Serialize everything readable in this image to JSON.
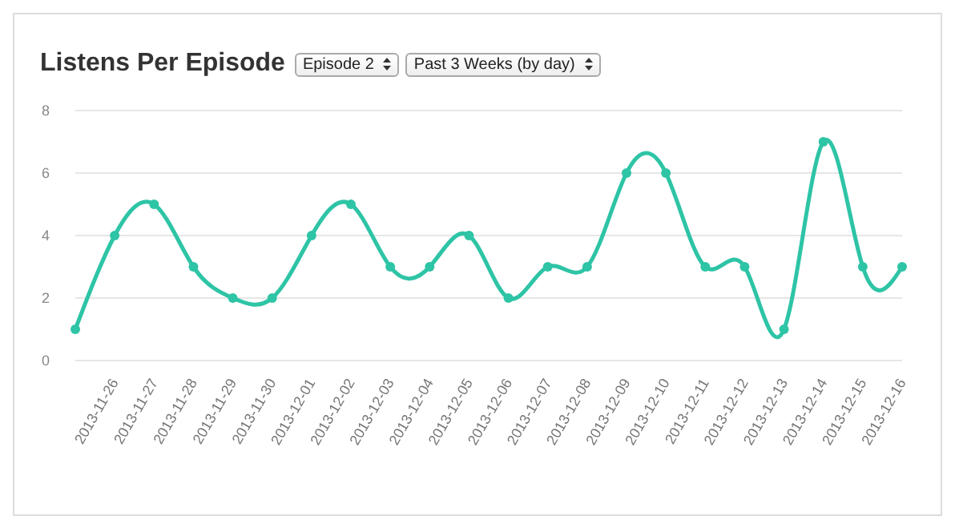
{
  "chart_data": {
    "type": "line",
    "title": "Listens Per Episode",
    "annotations": [
      "Episode 2",
      "Past 3 Weeks (by day)"
    ],
    "categories": [
      null,
      "2013-11-26",
      "2013-11-27",
      "2013-11-28",
      "2013-11-29",
      "2013-11-30",
      "2013-12-01",
      "2013-12-02",
      "2013-12-03",
      "2013-12-04",
      "2013-12-05",
      "2013-12-06",
      "2013-12-07",
      "2013-12-08",
      "2013-12-09",
      "2013-12-10",
      "2013-12-11",
      "2013-12-12",
      "2013-12-13",
      "2013-12-14",
      "2013-12-15",
      "2013-12-16"
    ],
    "series": [
      {
        "color": "#2ec4a6",
        "values": [
          1,
          4,
          5,
          3,
          2,
          2,
          4,
          5,
          3,
          3,
          4,
          2,
          3,
          3,
          6,
          6,
          3,
          3,
          1,
          7,
          3,
          3
        ]
      }
    ],
    "ylim": [
      0,
      8
    ],
    "yticks": [
      0,
      2,
      4,
      6,
      8
    ],
    "grid": "y",
    "legend": false,
    "marker": "circle",
    "line_style": "solid"
  }
}
